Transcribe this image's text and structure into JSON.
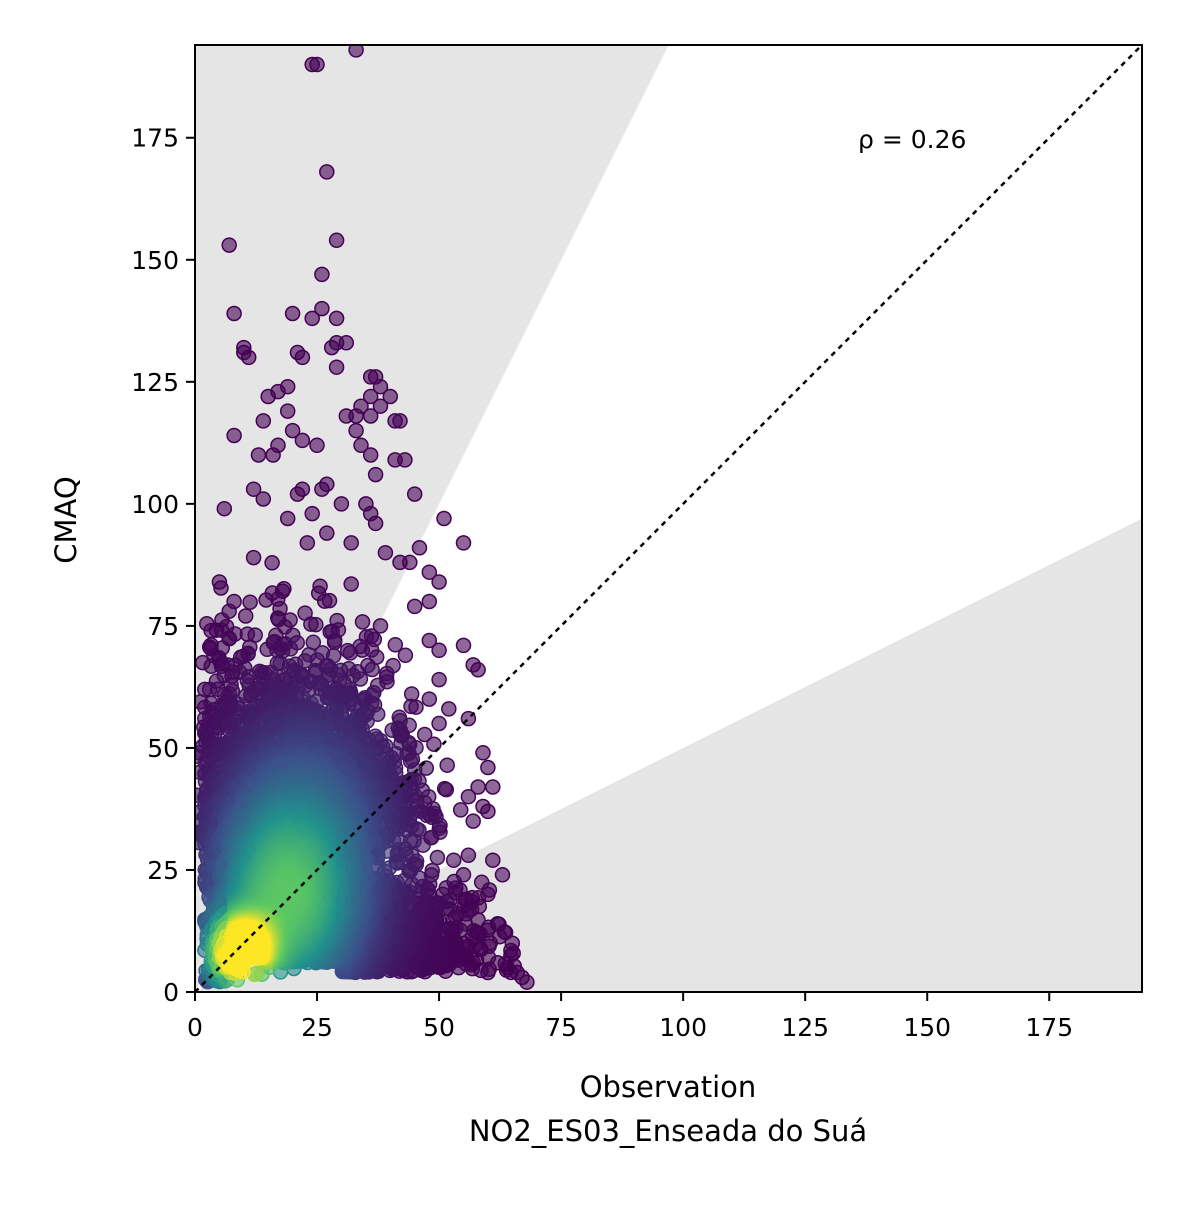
{
  "chart_data": {
    "type": "scatter",
    "title": "",
    "xlabel": "Observation",
    "xlabel_line2": "NO2_ES03_Enseada do Suá",
    "ylabel": "CMAQ",
    "xlim": [
      0,
      194
    ],
    "ylim": [
      0,
      194
    ],
    "xticks": [
      0,
      25,
      50,
      75,
      100,
      125,
      150,
      175
    ],
    "yticks": [
      0,
      25,
      50,
      75,
      100,
      125,
      150,
      175
    ],
    "xtick_labels": [
      "0",
      "25",
      "50",
      "75",
      "100",
      "125",
      "150",
      "175"
    ],
    "ytick_labels": [
      "0",
      "25",
      "50",
      "75",
      "100",
      "125",
      "150",
      "175"
    ],
    "annotation": "ρ = 0.26",
    "one_to_one_line": true,
    "factor_of_two_band": {
      "upper_slope": 2.0,
      "lower_slope": 0.5,
      "outside_color": "#e5e5e5"
    },
    "colormap": "viridis",
    "colors": {
      "low_density": "#440154",
      "mid_density": "#31688e",
      "high_density": "#35b779",
      "peak_density": "#fde725"
    },
    "grid": false,
    "legend": "none",
    "outliers": [
      [
        25,
        190
      ],
      [
        24,
        190
      ],
      [
        33,
        193
      ],
      [
        27,
        168
      ],
      [
        29,
        154
      ],
      [
        7,
        153
      ],
      [
        26,
        147
      ],
      [
        26,
        140
      ],
      [
        24,
        138
      ],
      [
        20,
        139
      ],
      [
        29,
        138
      ],
      [
        8,
        139
      ],
      [
        10,
        132
      ],
      [
        10,
        131
      ],
      [
        11,
        130
      ],
      [
        21,
        131
      ],
      [
        22,
        130
      ],
      [
        29,
        133
      ],
      [
        31,
        133
      ],
      [
        29,
        128
      ],
      [
        28,
        132
      ],
      [
        37,
        126
      ],
      [
        36,
        126
      ],
      [
        38,
        124
      ],
      [
        40,
        122
      ],
      [
        36,
        122
      ],
      [
        19,
        124
      ],
      [
        17,
        123
      ],
      [
        15,
        122
      ],
      [
        19,
        119
      ],
      [
        20,
        115
      ],
      [
        14,
        117
      ],
      [
        17,
        112
      ],
      [
        16,
        110
      ],
      [
        13,
        110
      ],
      [
        8,
        114
      ],
      [
        22,
        113
      ],
      [
        25,
        112
      ],
      [
        41,
        117
      ],
      [
        42,
        117
      ],
      [
        34,
        120
      ],
      [
        33,
        118
      ],
      [
        38,
        120
      ],
      [
        36,
        118
      ],
      [
        31,
        118
      ],
      [
        33,
        115
      ],
      [
        34,
        112
      ],
      [
        36,
        110
      ],
      [
        37,
        106
      ],
      [
        43,
        109
      ],
      [
        41,
        109
      ],
      [
        27,
        104
      ],
      [
        26,
        103
      ],
      [
        22,
        103
      ],
      [
        21,
        102
      ],
      [
        12,
        103
      ],
      [
        14,
        101
      ],
      [
        6,
        99
      ],
      [
        19,
        97
      ],
      [
        24,
        98
      ],
      [
        30,
        100
      ],
      [
        35,
        100
      ],
      [
        36,
        98
      ],
      [
        37,
        96
      ],
      [
        45,
        102
      ],
      [
        51,
        97
      ],
      [
        55,
        92
      ],
      [
        12,
        89
      ],
      [
        23,
        92
      ],
      [
        27,
        94
      ],
      [
        32,
        92
      ],
      [
        39,
        90
      ],
      [
        46,
        91
      ],
      [
        44,
        88
      ],
      [
        42,
        88
      ],
      [
        48,
        86
      ],
      [
        50,
        84
      ],
      [
        5,
        84
      ],
      [
        8,
        80
      ],
      [
        7,
        78
      ],
      [
        48,
        80
      ],
      [
        45,
        79
      ],
      [
        38,
        75
      ],
      [
        48,
        72
      ],
      [
        50,
        70
      ],
      [
        55,
        71
      ],
      [
        57,
        67
      ],
      [
        58,
        66
      ],
      [
        5,
        68
      ],
      [
        3,
        62
      ],
      [
        2,
        62
      ],
      [
        2,
        56
      ],
      [
        2,
        53
      ],
      [
        1,
        49
      ],
      [
        1,
        45
      ],
      [
        3,
        50
      ],
      [
        2,
        36
      ],
      [
        50,
        64
      ],
      [
        48,
        60
      ],
      [
        52,
        58
      ],
      [
        50,
        55
      ],
      [
        56,
        56
      ],
      [
        59,
        49
      ],
      [
        60,
        46
      ],
      [
        58,
        42
      ],
      [
        61,
        42
      ],
      [
        56,
        40
      ],
      [
        59,
        38
      ],
      [
        60,
        37
      ],
      [
        57,
        35
      ],
      [
        56,
        28
      ],
      [
        61,
        27
      ],
      [
        63,
        24
      ],
      [
        53,
        27
      ],
      [
        55,
        24
      ],
      [
        60,
        20
      ],
      [
        62,
        14
      ],
      [
        65,
        10
      ],
      [
        58,
        12
      ],
      [
        62,
        6
      ],
      [
        64,
        5
      ],
      [
        66,
        4
      ],
      [
        67,
        3
      ],
      [
        68,
        2
      ],
      [
        60,
        4
      ],
      [
        57,
        6
      ],
      [
        54,
        5
      ],
      [
        52,
        7
      ],
      [
        50,
        8
      ],
      [
        48,
        10
      ],
      [
        46,
        12
      ],
      [
        44,
        13
      ],
      [
        53,
        15
      ],
      [
        50,
        18
      ]
    ]
  }
}
